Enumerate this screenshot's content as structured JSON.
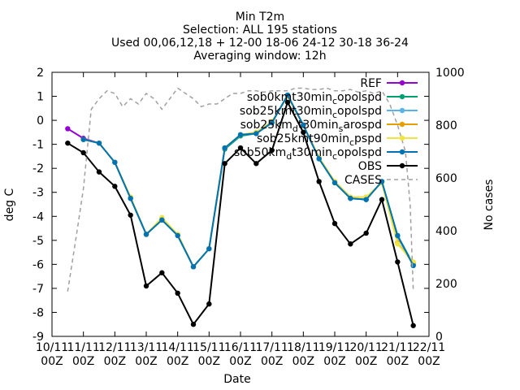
{
  "chart_data": {
    "type": "line",
    "title_lines": [
      "Min T2m",
      "Selection: ALL     195 stations",
      "Used 00,06,12,18 + 12-00 18-06 24-12 30-18 36-24",
      "Averaging window: 12h"
    ],
    "xlabel": "Date",
    "ylabel": "deg C",
    "y2label": "No cases",
    "x": [
      0.5,
      1.0,
      1.5,
      2.0,
      2.5,
      3.0,
      3.5,
      4.0,
      4.5,
      5.0,
      5.5,
      6.0,
      6.5,
      7.0,
      7.5,
      8.0,
      8.5,
      9.0,
      9.5,
      10.0,
      10.5,
      11.0,
      11.5
    ],
    "xlim": [
      0,
      12
    ],
    "ylim": [
      -9,
      2
    ],
    "y2lim": [
      0,
      1000
    ],
    "x_ticks": [
      {
        "v": 0,
        "l1": "10/11",
        "l2": "00Z"
      },
      {
        "v": 1,
        "l1": "11/11",
        "l2": "00Z"
      },
      {
        "v": 2,
        "l1": "12/11",
        "l2": "00Z"
      },
      {
        "v": 3,
        "l1": "13/11",
        "l2": "00Z"
      },
      {
        "v": 4,
        "l1": "14/11",
        "l2": "00Z"
      },
      {
        "v": 5,
        "l1": "15/11",
        "l2": "00Z"
      },
      {
        "v": 6,
        "l1": "16/11",
        "l2": "00Z"
      },
      {
        "v": 7,
        "l1": "17/11",
        "l2": "00Z"
      },
      {
        "v": 8,
        "l1": "18/11",
        "l2": "00Z"
      },
      {
        "v": 9,
        "l1": "19/11",
        "l2": "00Z"
      },
      {
        "v": 10,
        "l1": "20/11",
        "l2": "00Z"
      },
      {
        "v": 11,
        "l1": "21/11",
        "l2": "00Z"
      },
      {
        "v": 12,
        "l1": "22/11",
        "l2": "00Z"
      }
    ],
    "y_ticks": [
      -9,
      -8,
      -7,
      -6,
      -5,
      -4,
      -3,
      -2,
      -1,
      0,
      1,
      2
    ],
    "y2_ticks": [
      0,
      200,
      400,
      600,
      800,
      1000
    ],
    "series": [
      {
        "name": "REF",
        "color": "#9400d3",
        "values": [
          -0.35,
          -0.75,
          -0.95,
          null,
          null,
          null,
          null,
          null,
          null,
          null,
          null,
          null,
          null,
          null,
          null,
          null,
          null,
          null,
          null,
          null,
          null,
          null,
          null
        ]
      },
      {
        "name": "sob0km_t30min_copolspd",
        "color": "#009e73",
        "values": [
          null,
          -0.8,
          -0.95,
          -1.75,
          -3.25,
          -4.75,
          -4.15,
          -4.8,
          -6.1,
          -5.35,
          -1.2,
          -0.65,
          -0.55,
          -0.1,
          1.05,
          -0.2,
          -1.6,
          -2.6,
          -3.25,
          -3.3,
          -2.55,
          -4.8,
          -6.0
        ]
      },
      {
        "name": "sob25km_t30min_copolspd",
        "color": "#56b4e9",
        "values": [
          null,
          -0.8,
          -0.95,
          -1.75,
          -3.25,
          -4.75,
          -4.15,
          -4.8,
          -6.1,
          -5.35,
          -1.15,
          -0.6,
          -0.55,
          -0.1,
          1.05,
          -0.2,
          -1.6,
          -2.6,
          -3.25,
          -3.3,
          -2.55,
          -4.85,
          -6.05
        ]
      },
      {
        "name": "sob25km_d_t30min_s_arospd",
        "label_main": "sob25km",
        "label_sub1": "d",
        "label_mid": "t30min",
        "label_sub2": "s",
        "label_end": "arospd",
        "color": "#e69f00",
        "values": [
          null,
          -0.8,
          -0.95,
          -1.75,
          -3.2,
          -4.75,
          -4.1,
          -4.75,
          -6.1,
          -5.35,
          -1.15,
          -0.6,
          -0.5,
          -0.05,
          1.0,
          -0.2,
          -1.55,
          -2.55,
          -3.2,
          -3.2,
          -2.6,
          -5.1,
          -5.95
        ]
      },
      {
        "name": "sob25km_t90min_c_pspd",
        "label_main": "sob25km",
        "label_sub1": "",
        "label_mid": "t90min",
        "label_sub2": "c",
        "label_end": "pspd",
        "color": "#f0e442",
        "values": [
          null,
          -0.8,
          -0.95,
          -1.75,
          -3.2,
          -4.75,
          -4.05,
          -4.75,
          -6.1,
          -5.35,
          -1.15,
          -0.6,
          -0.5,
          -0.05,
          1.0,
          -0.2,
          -1.55,
          -2.55,
          -3.2,
          -3.2,
          -2.6,
          -5.15,
          -5.9
        ]
      },
      {
        "name": "sob50km_d_t30min_c_opolspd",
        "label_main": "sob50km",
        "label_sub1": "d",
        "label_mid": "t30min",
        "label_sub2": "c",
        "label_end": "opolspd",
        "color": "#0072b2",
        "values": [
          null,
          -0.8,
          -0.95,
          -1.75,
          -3.25,
          -4.75,
          -4.15,
          -4.8,
          -6.1,
          -5.35,
          -1.15,
          -0.6,
          -0.55,
          -0.1,
          1.05,
          -0.2,
          -1.6,
          -2.6,
          -3.25,
          -3.3,
          -2.55,
          -4.8,
          -6.05
        ]
      },
      {
        "name": "OBS",
        "color": "#000000",
        "values": [
          -0.95,
          -1.35,
          -2.15,
          -2.75,
          -3.95,
          -6.9,
          -6.35,
          -7.2,
          -8.5,
          -7.65,
          -1.8,
          -1.15,
          -1.8,
          -1.25,
          0.75,
          -0.5,
          -2.55,
          -4.3,
          -5.15,
          -4.7,
          -3.3,
          -5.9,
          -8.55
        ]
      },
      {
        "name": "CASES",
        "color": "#a0a0a0",
        "axis": "y2",
        "x": [
          0.5,
          0.8,
          1.0,
          1.25,
          1.5,
          1.75,
          2.0,
          2.25,
          2.5,
          2.75,
          3.0,
          3.25,
          3.5,
          3.75,
          4.0,
          4.25,
          4.5,
          4.75,
          5.0,
          5.25,
          5.5,
          5.75,
          6.0,
          6.25,
          6.5,
          6.75,
          7.0,
          7.25,
          7.5,
          7.75,
          8.0,
          8.25,
          8.5,
          8.75,
          9.0,
          9.25,
          9.5,
          9.75,
          10.0,
          10.25,
          10.5,
          10.75,
          11.0,
          11.25,
          11.4,
          11.5
        ],
        "values": [
          170,
          400,
          560,
          860,
          900,
          930,
          920,
          870,
          900,
          880,
          920,
          900,
          860,
          900,
          940,
          920,
          900,
          870,
          880,
          880,
          900,
          920,
          920,
          930,
          930,
          925,
          930,
          930,
          930,
          940,
          940,
          935,
          935,
          940,
          930,
          930,
          935,
          925,
          930,
          920,
          930,
          880,
          800,
          700,
          500,
          170
        ]
      }
    ],
    "legend": {
      "placement": "top-right",
      "items": [
        {
          "id": "REF",
          "text": "REF"
        },
        {
          "id": "s0",
          "text": "sob0km_t30min_copolspd"
        },
        {
          "id": "s1",
          "text": "sob25km_t30min_copolspd"
        },
        {
          "id": "s2",
          "text": "sob25km_d_t30min_s_arospd"
        },
        {
          "id": "s3",
          "text": "sob25km_t90min_c_pspd"
        },
        {
          "id": "s4",
          "text": "sob50km_d_t30min_c_opolspd"
        },
        {
          "id": "OBS",
          "text": "OBS"
        },
        {
          "id": "CASES",
          "text": "CASES"
        }
      ]
    }
  }
}
